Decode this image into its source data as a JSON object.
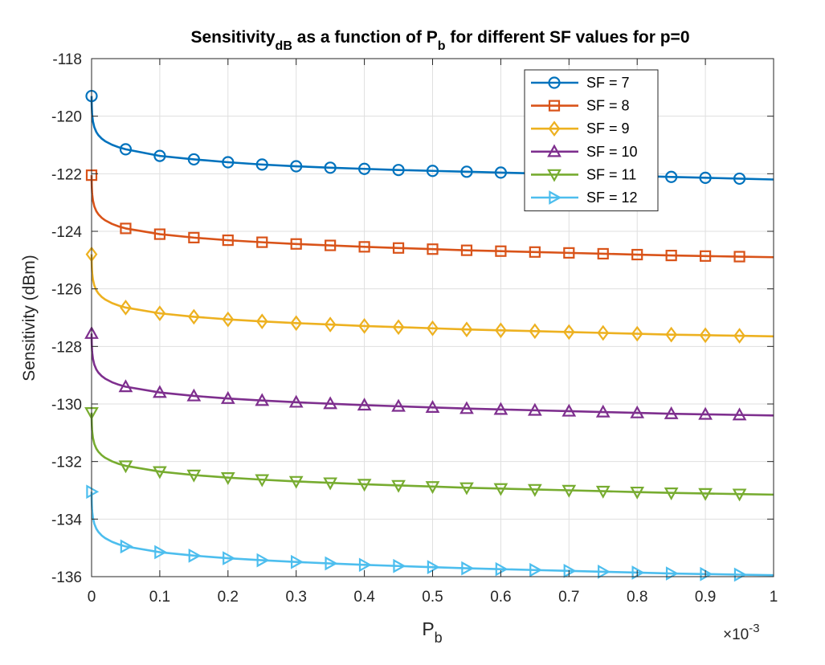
{
  "chart_data": {
    "type": "line",
    "title": {
      "prefix": "Sensitivity",
      "sub": "dB",
      "middle": " as a function of P",
      "sub2": "b",
      "suffix": " for different SF values for p=0"
    },
    "xlabel": {
      "main": "P",
      "sub": "b"
    },
    "ylabel": "Sensitivity (dBm)",
    "x_multiplier": {
      "times": "×10",
      "exp": "-3"
    },
    "xlim": [
      0,
      1
    ],
    "ylim": [
      -136,
      -118
    ],
    "xticks": [
      0,
      0.1,
      0.2,
      0.3,
      0.4,
      0.5,
      0.6,
      0.7,
      0.8,
      0.9,
      1
    ],
    "xtick_labels": [
      "0",
      "0.1",
      "0.2",
      "0.3",
      "0.4",
      "0.5",
      "0.6",
      "0.7",
      "0.8",
      "0.9",
      "1"
    ],
    "yticks": [
      -136,
      -134,
      -132,
      -130,
      -128,
      -126,
      -124,
      -122,
      -120,
      -118
    ],
    "ytick_labels": [
      "-136",
      "-134",
      "-132",
      "-130",
      "-128",
      "-126",
      "-124",
      "-122",
      "-120",
      "-118"
    ],
    "grid": true,
    "legend_position": "top-right",
    "marker_x": [
      0,
      0.05,
      0.1,
      0.15,
      0.2,
      0.25,
      0.3,
      0.35,
      0.4,
      0.45,
      0.5,
      0.55,
      0.6,
      0.65,
      0.7,
      0.75,
      0.8,
      0.85,
      0.9,
      0.95
    ],
    "series": [
      {
        "name": "SF = 7",
        "color": "#0072BD",
        "marker": "circle",
        "y_at_zero": -119.3,
        "values": [
          -119.3,
          -121.15,
          -121.38,
          -121.5,
          -121.6,
          -121.68,
          -121.74,
          -121.79,
          -121.83,
          -121.87,
          -121.9,
          -121.93,
          -121.96,
          -121.99,
          -122.02,
          -122.05,
          -122.08,
          -122.11,
          -122.14,
          -122.17
        ],
        "end": -122.2
      },
      {
        "name": "SF = 8",
        "color": "#D95319",
        "marker": "square",
        "y_at_zero": -122.05,
        "values": [
          -122.05,
          -123.9,
          -124.1,
          -124.22,
          -124.31,
          -124.38,
          -124.44,
          -124.49,
          -124.54,
          -124.58,
          -124.62,
          -124.66,
          -124.69,
          -124.72,
          -124.75,
          -124.78,
          -124.81,
          -124.84,
          -124.86,
          -124.88
        ],
        "end": -124.9
      },
      {
        "name": "SF = 9",
        "color": "#EDB120",
        "marker": "diamond",
        "y_at_zero": -124.8,
        "values": [
          -124.8,
          -126.65,
          -126.85,
          -126.97,
          -127.06,
          -127.13,
          -127.19,
          -127.24,
          -127.29,
          -127.33,
          -127.37,
          -127.41,
          -127.44,
          -127.47,
          -127.5,
          -127.53,
          -127.56,
          -127.59,
          -127.61,
          -127.63
        ],
        "end": -127.65
      },
      {
        "name": "SF = 10",
        "color": "#7E2F8E",
        "marker": "triangle-up",
        "y_at_zero": -127.55,
        "values": [
          -127.55,
          -129.4,
          -129.6,
          -129.72,
          -129.81,
          -129.88,
          -129.94,
          -129.99,
          -130.04,
          -130.08,
          -130.12,
          -130.16,
          -130.19,
          -130.22,
          -130.25,
          -130.28,
          -130.31,
          -130.34,
          -130.36,
          -130.38
        ],
        "end": -130.4
      },
      {
        "name": "SF = 11",
        "color": "#77AC30",
        "marker": "triangle-down",
        "y_at_zero": -130.3,
        "values": [
          -130.3,
          -132.15,
          -132.35,
          -132.47,
          -132.56,
          -132.63,
          -132.69,
          -132.74,
          -132.79,
          -132.83,
          -132.87,
          -132.91,
          -132.94,
          -132.97,
          -133.0,
          -133.03,
          -133.06,
          -133.09,
          -133.11,
          -133.13
        ],
        "end": -133.15
      },
      {
        "name": "SF = 12",
        "color": "#4DBEEE",
        "marker": "triangle-right",
        "y_at_zero": -133.05,
        "values": [
          -133.05,
          -134.95,
          -135.15,
          -135.27,
          -135.36,
          -135.43,
          -135.49,
          -135.54,
          -135.59,
          -135.63,
          -135.67,
          -135.71,
          -135.74,
          -135.77,
          -135.8,
          -135.83,
          -135.86,
          -135.89,
          -135.91,
          -135.93
        ],
        "end": -135.95
      }
    ]
  }
}
